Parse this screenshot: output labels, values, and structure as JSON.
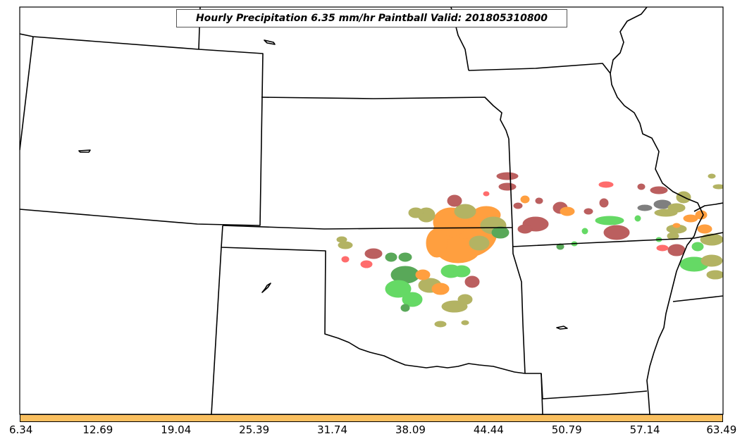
{
  "title": "Hourly Precipitation 6.35 mm/hr Paintball Valid: 201805310800",
  "colorbar": {
    "color": "#f9bf5f",
    "tick_labels": [
      "6.34",
      "12.69",
      "19.04",
      "25.39",
      "31.74",
      "38.09",
      "44.44",
      "50.79",
      "57.14",
      "63.49"
    ]
  },
  "colors": {
    "state_lines": "#000000",
    "dark_red": "#a52a2a",
    "orange": "#ff7f00",
    "green": "#32cd32",
    "dark_green": "#228b22",
    "olive": "#9a9a30",
    "red": "#ff3b3b",
    "gray": "#555555"
  }
}
